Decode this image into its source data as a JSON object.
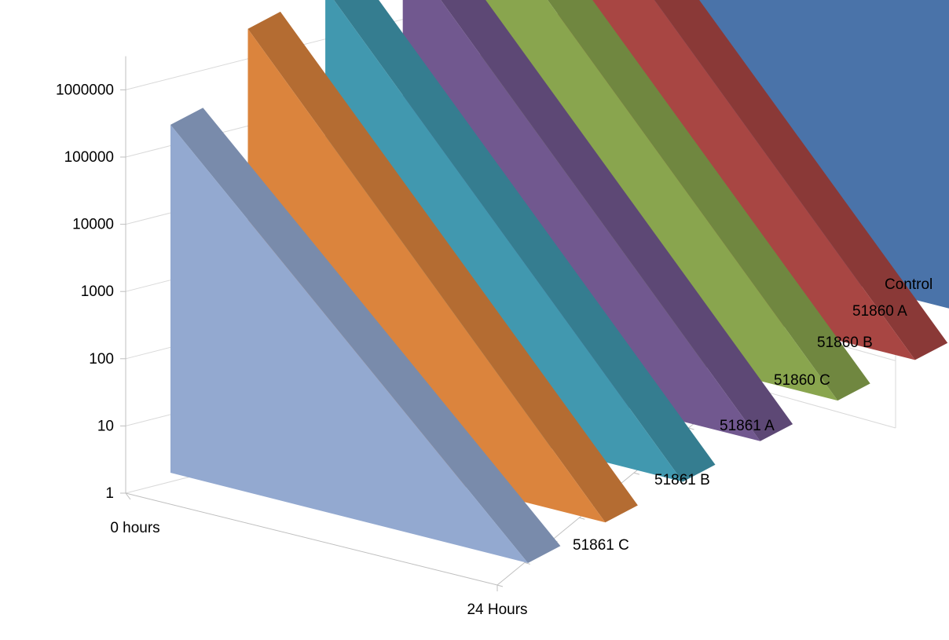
{
  "chart_data": {
    "type": "area",
    "title": "",
    "xlabel": "",
    "ylabel": "",
    "scale": "log",
    "ylim": [
      1,
      1000000
    ],
    "y_ticks": [
      "1",
      "10",
      "100",
      "1000",
      "10000",
      "100000",
      "1000000"
    ],
    "categories": [
      "0 hours",
      "24 Hours"
    ],
    "depth_labels": [
      "Control",
      "51860 A",
      "51860 B",
      "51860 C",
      "51861 A",
      "51861 B",
      "51861 C"
    ],
    "series": [
      {
        "name": "Control",
        "values": [
          1000000,
          1000000
        ],
        "color": "#4a73a9"
      },
      {
        "name": "51860 A",
        "values": [
          1000000,
          1
        ],
        "color": "#a84643"
      },
      {
        "name": "51860 B",
        "values": [
          1000000,
          1
        ],
        "color": "#89a54e"
      },
      {
        "name": "51860 C",
        "values": [
          1000000,
          1
        ],
        "color": "#71588f"
      },
      {
        "name": "51861 A",
        "values": [
          1000000,
          1
        ],
        "color": "#4198af"
      },
      {
        "name": "51861 B",
        "values": [
          1000000,
          1
        ],
        "color": "#db843d"
      },
      {
        "name": "51861 C",
        "values": [
          150000,
          1
        ],
        "color": "#93a9d0"
      }
    ],
    "grid": true,
    "legend": "none"
  }
}
